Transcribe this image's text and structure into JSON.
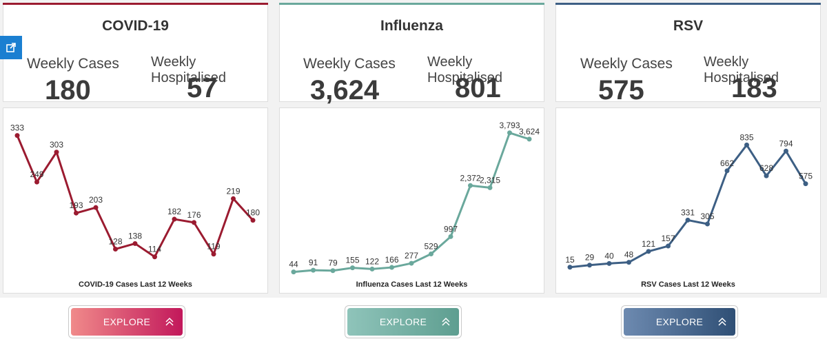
{
  "share_icon": "share-icon",
  "panels": [
    {
      "title": "COVID-19",
      "color": "#9b1b30",
      "weekly_cases_label": "Weekly Cases",
      "weekly_cases_value": "180",
      "weekly_hosp_label": "Weekly Hospitalised",
      "weekly_hosp_value": "57",
      "explore_label": "EXPLORE",
      "explore_gradient": [
        "#f08a8a",
        "#c2185b"
      ],
      "chart_data": {
        "type": "line",
        "title": "COVID-19 Cases Last 12 Weeks",
        "x": [
          1,
          2,
          3,
          4,
          5,
          6,
          7,
          8,
          9,
          10,
          11,
          12,
          13
        ],
        "values": [
          333,
          249,
          303,
          193,
          203,
          128,
          138,
          114,
          182,
          176,
          119,
          219,
          180
        ],
        "labels": [
          "333",
          "249",
          "303",
          "193",
          "203",
          "128",
          "138",
          "114",
          "182",
          "176",
          "119",
          "219",
          "180"
        ],
        "ylim": [
          100,
          340
        ]
      }
    },
    {
      "title": "Influenza",
      "color": "#6aa89c",
      "weekly_cases_label": "Weekly Cases",
      "weekly_cases_value": "3,624",
      "weekly_hosp_label": "Weekly Hospitalised",
      "weekly_hosp_value": "801",
      "explore_label": "EXPLORE",
      "explore_gradient": [
        "#8fc4ba",
        "#5e9e90"
      ],
      "chart_data": {
        "type": "line",
        "title": "Influenza Cases Last 12 Weeks",
        "x": [
          1,
          2,
          3,
          4,
          5,
          6,
          7,
          8,
          9,
          10,
          11,
          12,
          13
        ],
        "values": [
          44,
          91,
          79,
          155,
          122,
          166,
          277,
          529,
          997,
          2372,
          2315,
          3793,
          3624
        ],
        "labels": [
          "44",
          "91",
          "79",
          "155",
          "122",
          "166",
          "277",
          "529",
          "997",
          "2,372",
          "2,315",
          "3,793",
          "3,624"
        ],
        "ylim": [
          0,
          3900
        ]
      }
    },
    {
      "title": "RSV",
      "color": "#3d5f84",
      "weekly_cases_label": "Weekly Cases",
      "weekly_cases_value": "575",
      "weekly_hosp_label": "Weekly Hospitalised",
      "weekly_hosp_value": "183",
      "explore_label": "EXPLORE",
      "explore_gradient": [
        "#6d8ab0",
        "#2f4f75"
      ],
      "chart_data": {
        "type": "line",
        "title": "RSV Cases Last 12 Weeks",
        "x": [
          1,
          2,
          3,
          4,
          5,
          6,
          7,
          8,
          9,
          10,
          11,
          12,
          13
        ],
        "values": [
          15,
          29,
          40,
          48,
          121,
          157,
          331,
          305,
          662,
          835,
          628,
          794,
          575
        ],
        "labels": [
          "15",
          "29",
          "40",
          "48",
          "121",
          "157",
          "331",
          "305",
          "662",
          "835",
          "628",
          "794",
          "575"
        ],
        "ylim": [
          0,
          860
        ]
      }
    }
  ]
}
